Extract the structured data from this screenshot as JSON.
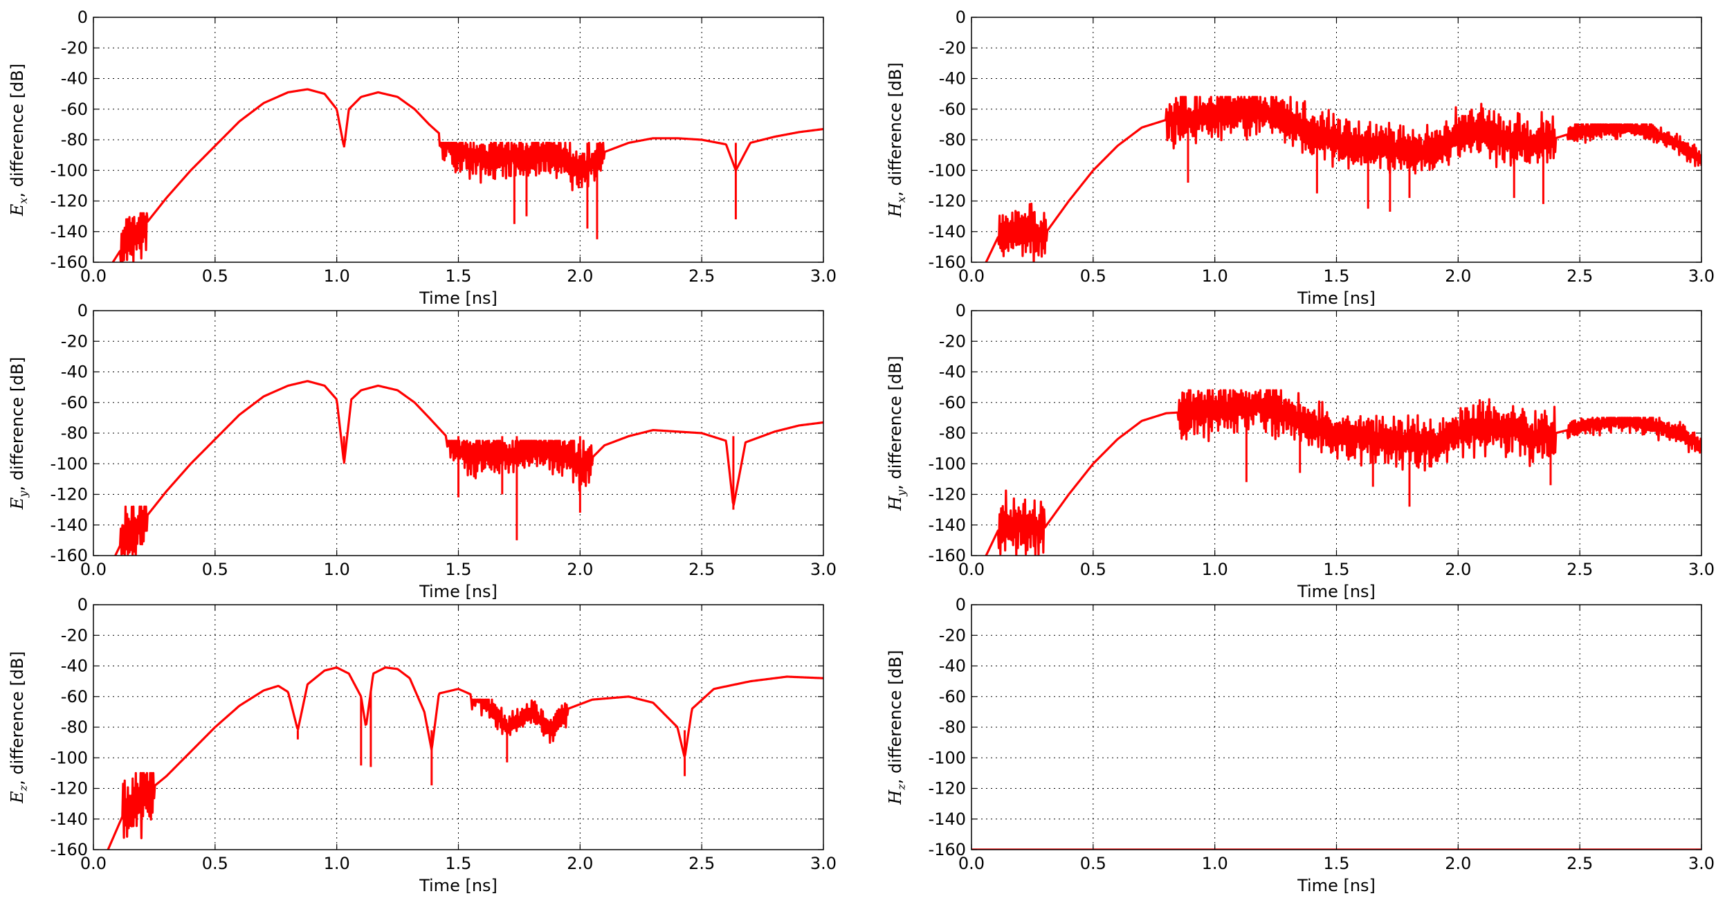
{
  "chart_data": [
    {
      "id": "ex",
      "type": "line",
      "ylabel_symbol": "E",
      "ylabel_sub": "x",
      "ylabel_rest": ", difference [dB]",
      "xlabel": "Time [ns]",
      "xlim": [
        0.0,
        3.0
      ],
      "ylim": [
        -160,
        0
      ],
      "xticks": [
        "0.0",
        "0.5",
        "1.0",
        "1.5",
        "2.0",
        "2.5",
        "3.0"
      ],
      "yticks": [
        "0",
        "-20",
        "-40",
        "-60",
        "-80",
        "-100",
        "-120",
        "-140",
        "-160"
      ],
      "grid": true,
      "series": [
        {
          "color": "#ff0000",
          "x": [
            0.08,
            0.12,
            0.2,
            0.3,
            0.4,
            0.5,
            0.6,
            0.7,
            0.8,
            0.88,
            0.95,
            1.0,
            1.03,
            1.05,
            1.1,
            1.17,
            1.25,
            1.32,
            1.38,
            1.45,
            1.5,
            1.6,
            1.7,
            1.8,
            1.9,
            2.0,
            2.05,
            2.1,
            2.2,
            2.3,
            2.4,
            2.5,
            2.6,
            2.64,
            2.7,
            2.8,
            2.9,
            3.0
          ],
          "y": [
            -160,
            -150,
            -138,
            -118,
            -100,
            -84,
            -68,
            -56,
            -49,
            -47,
            -50,
            -60,
            -85,
            -60,
            -52,
            -49,
            -52,
            -60,
            -70,
            -80,
            -88,
            -92,
            -90,
            -92,
            -88,
            -100,
            -96,
            -88,
            -82,
            -79,
            -79,
            -80,
            -83,
            -100,
            -82,
            -78,
            -75,
            -73
          ]
        }
      ],
      "noise": [
        {
          "x0": 0.11,
          "x1": 0.22,
          "lo": -160,
          "hi": -128,
          "amp": 18
        },
        {
          "x0": 1.42,
          "x1": 2.1,
          "lo": -145,
          "hi": -82,
          "amp": 12
        }
      ],
      "spikes": [
        {
          "x": 1.03,
          "y": -85
        },
        {
          "x": 1.73,
          "y": -135
        },
        {
          "x": 1.78,
          "y": -130
        },
        {
          "x": 2.03,
          "y": -138
        },
        {
          "x": 2.07,
          "y": -145
        },
        {
          "x": 2.64,
          "y": -132
        }
      ]
    },
    {
      "id": "hx",
      "type": "line",
      "ylabel_symbol": "H",
      "ylabel_sub": "x",
      "ylabel_rest": ", difference [dB]",
      "xlabel": "Time [ns]",
      "xlim": [
        0.0,
        3.0
      ],
      "ylim": [
        -160,
        0
      ],
      "xticks": [
        "0.0",
        "0.5",
        "1.0",
        "1.5",
        "2.0",
        "2.5",
        "3.0"
      ],
      "yticks": [
        "0",
        "-20",
        "-40",
        "-60",
        "-80",
        "-100",
        "-120",
        "-140",
        "-160"
      ],
      "grid": true,
      "series": [
        {
          "color": "#ff0000",
          "x": [
            0.06,
            0.12,
            0.2,
            0.3,
            0.4,
            0.5,
            0.6,
            0.7,
            0.8,
            0.9,
            1.0,
            1.1,
            1.2,
            1.3,
            1.4,
            1.5,
            1.6,
            1.7,
            1.8,
            1.9,
            2.0,
            2.1,
            2.2,
            2.3,
            2.4,
            2.5,
            2.6,
            2.7,
            2.8,
            2.9,
            3.0
          ],
          "y": [
            -160,
            -140,
            -140,
            -142,
            -120,
            -100,
            -84,
            -72,
            -67,
            -66,
            -64,
            -60,
            -62,
            -66,
            -75,
            -82,
            -84,
            -85,
            -88,
            -87,
            -76,
            -74,
            -80,
            -82,
            -79,
            -74,
            -72,
            -72,
            -75,
            -82,
            -93
          ]
        }
      ],
      "noise": [
        {
          "x0": 0.11,
          "x1": 0.31,
          "lo": -160,
          "hi": -114,
          "amp": 16
        },
        {
          "x0": 0.8,
          "x1": 2.4,
          "lo": -125,
          "hi": -52,
          "amp": 14
        },
        {
          "x0": 2.45,
          "x1": 3.0,
          "lo": -100,
          "hi": -70,
          "amp": 6
        }
      ],
      "spikes": [
        {
          "x": 0.89,
          "y": -108
        },
        {
          "x": 1.42,
          "y": -115
        },
        {
          "x": 1.63,
          "y": -125
        },
        {
          "x": 1.72,
          "y": -127
        },
        {
          "x": 1.8,
          "y": -118
        },
        {
          "x": 2.23,
          "y": -118
        },
        {
          "x": 2.35,
          "y": -122
        }
      ]
    },
    {
      "id": "ey",
      "type": "line",
      "ylabel_symbol": "E",
      "ylabel_sub": "y",
      "ylabel_rest": ", difference [dB]",
      "xlabel": "Time [ns]",
      "xlim": [
        0.0,
        3.0
      ],
      "ylim": [
        -160,
        0
      ],
      "xticks": [
        "0.0",
        "0.5",
        "1.0",
        "1.5",
        "2.0",
        "2.5",
        "3.0"
      ],
      "yticks": [
        "0",
        "-20",
        "-40",
        "-60",
        "-80",
        "-100",
        "-120",
        "-140",
        "-160"
      ],
      "grid": true,
      "series": [
        {
          "color": "#ff0000",
          "x": [
            0.09,
            0.12,
            0.2,
            0.3,
            0.4,
            0.5,
            0.6,
            0.7,
            0.8,
            0.88,
            0.95,
            1.0,
            1.03,
            1.06,
            1.1,
            1.17,
            1.25,
            1.32,
            1.38,
            1.45,
            1.5,
            1.6,
            1.7,
            1.8,
            1.9,
            2.0,
            2.05,
            2.1,
            2.2,
            2.3,
            2.4,
            2.5,
            2.6,
            2.63,
            2.68,
            2.8,
            2.9,
            3.0
          ],
          "y": [
            -160,
            -150,
            -138,
            -118,
            -100,
            -84,
            -68,
            -56,
            -49,
            -46,
            -49,
            -58,
            -100,
            -58,
            -52,
            -49,
            -52,
            -60,
            -70,
            -82,
            -92,
            -93,
            -94,
            -90,
            -92,
            -102,
            -96,
            -88,
            -82,
            -78,
            -79,
            -80,
            -85,
            -128,
            -86,
            -79,
            -75,
            -73
          ]
        }
      ],
      "noise": [
        {
          "x0": 0.11,
          "x1": 0.22,
          "lo": -160,
          "hi": -128,
          "amp": 18
        },
        {
          "x0": 1.45,
          "x1": 2.05,
          "lo": -150,
          "hi": -85,
          "amp": 12
        }
      ],
      "spikes": [
        {
          "x": 1.03,
          "y": -100
        },
        {
          "x": 1.5,
          "y": -122
        },
        {
          "x": 1.68,
          "y": -120
        },
        {
          "x": 1.74,
          "y": -150
        },
        {
          "x": 2.0,
          "y": -132
        },
        {
          "x": 2.63,
          "y": -130
        }
      ]
    },
    {
      "id": "hy",
      "type": "line",
      "ylabel_symbol": "H",
      "ylabel_sub": "y",
      "ylabel_rest": ", difference [dB]",
      "xlabel": "Time [ns]",
      "xlim": [
        0.0,
        3.0
      ],
      "ylim": [
        -160,
        0
      ],
      "xticks": [
        "0.0",
        "0.5",
        "1.0",
        "1.5",
        "2.0",
        "2.5",
        "3.0"
      ],
      "yticks": [
        "0",
        "-20",
        "-40",
        "-60",
        "-80",
        "-100",
        "-120",
        "-140",
        "-160"
      ],
      "grid": true,
      "series": [
        {
          "color": "#ff0000",
          "x": [
            0.06,
            0.12,
            0.2,
            0.3,
            0.4,
            0.5,
            0.6,
            0.7,
            0.8,
            0.9,
            1.0,
            1.1,
            1.2,
            1.3,
            1.4,
            1.5,
            1.6,
            1.7,
            1.8,
            1.9,
            2.0,
            2.1,
            2.2,
            2.3,
            2.4,
            2.5,
            2.6,
            2.7,
            2.8,
            2.9,
            3.0
          ],
          "y": [
            -160,
            -140,
            -140,
            -142,
            -120,
            -100,
            -84,
            -72,
            -67,
            -66,
            -66,
            -62,
            -62,
            -68,
            -75,
            -80,
            -82,
            -84,
            -86,
            -86,
            -80,
            -76,
            -76,
            -84,
            -80,
            -76,
            -73,
            -72,
            -75,
            -80,
            -88
          ]
        }
      ],
      "noise": [
        {
          "x0": 0.11,
          "x1": 0.3,
          "lo": -160,
          "hi": -114,
          "amp": 16
        },
        {
          "x0": 0.85,
          "x1": 2.4,
          "lo": -120,
          "hi": -52,
          "amp": 14
        },
        {
          "x0": 2.45,
          "x1": 3.0,
          "lo": -100,
          "hi": -70,
          "amp": 6
        }
      ],
      "spikes": [
        {
          "x": 1.13,
          "y": -112
        },
        {
          "x": 1.35,
          "y": -106
        },
        {
          "x": 1.65,
          "y": -115
        },
        {
          "x": 1.8,
          "y": -128
        },
        {
          "x": 2.38,
          "y": -114
        }
      ]
    },
    {
      "id": "ez",
      "type": "line",
      "ylabel_symbol": "E",
      "ylabel_sub": "z",
      "ylabel_rest": ", difference [dB]",
      "xlabel": "Time [ns]",
      "xlim": [
        0.0,
        3.0
      ],
      "ylim": [
        -160,
        0
      ],
      "xticks": [
        "0.0",
        "0.5",
        "1.0",
        "1.5",
        "2.0",
        "2.5",
        "3.0"
      ],
      "yticks": [
        "0",
        "-20",
        "-40",
        "-60",
        "-80",
        "-100",
        "-120",
        "-140",
        "-160"
      ],
      "grid": true,
      "series": [
        {
          "color": "#ff0000",
          "x": [
            0.06,
            0.12,
            0.2,
            0.3,
            0.4,
            0.5,
            0.6,
            0.7,
            0.76,
            0.8,
            0.84,
            0.88,
            0.95,
            1.0,
            1.05,
            1.1,
            1.12,
            1.15,
            1.2,
            1.25,
            1.3,
            1.36,
            1.39,
            1.42,
            1.5,
            1.6,
            1.7,
            1.8,
            1.88,
            1.95,
            2.05,
            2.2,
            2.3,
            2.4,
            2.43,
            2.46,
            2.55,
            2.7,
            2.85,
            3.0
          ],
          "y": [
            -160,
            -138,
            -125,
            -112,
            -96,
            -80,
            -66,
            -56,
            -53,
            -57,
            -82,
            -52,
            -43,
            -41,
            -45,
            -60,
            -80,
            -45,
            -41,
            -42,
            -48,
            -70,
            -95,
            -58,
            -55,
            -62,
            -80,
            -70,
            -82,
            -68,
            -62,
            -60,
            -64,
            -80,
            -100,
            -68,
            -55,
            -50,
            -47,
            -48
          ]
        }
      ],
      "noise": [
        {
          "x0": 0.12,
          "x1": 0.25,
          "lo": -160,
          "hi": -110,
          "amp": 20
        },
        {
          "x0": 1.55,
          "x1": 1.95,
          "lo": -95,
          "hi": -62,
          "amp": 8
        }
      ],
      "spikes": [
        {
          "x": 0.84,
          "y": -88
        },
        {
          "x": 1.1,
          "y": -105
        },
        {
          "x": 1.14,
          "y": -106
        },
        {
          "x": 1.39,
          "y": -118
        },
        {
          "x": 1.7,
          "y": -103
        },
        {
          "x": 1.89,
          "y": -88
        },
        {
          "x": 2.43,
          "y": -112
        }
      ]
    },
    {
      "id": "hz",
      "type": "line",
      "ylabel_symbol": "H",
      "ylabel_sub": "z",
      "ylabel_rest": ", difference [dB]",
      "xlabel": "Time [ns]",
      "xlim": [
        0.0,
        3.0
      ],
      "ylim": [
        -160,
        0
      ],
      "xticks": [
        "0.0",
        "0.5",
        "1.0",
        "1.5",
        "2.0",
        "2.5",
        "3.0"
      ],
      "yticks": [
        "0",
        "-20",
        "-40",
        "-60",
        "-80",
        "-100",
        "-120",
        "-140",
        "-160"
      ],
      "grid": true,
      "series": [
        {
          "color": "#ff0000",
          "x": [
            0.0,
            3.0
          ],
          "y": [
            -160,
            -160
          ]
        }
      ],
      "noise": [],
      "spikes": []
    }
  ]
}
